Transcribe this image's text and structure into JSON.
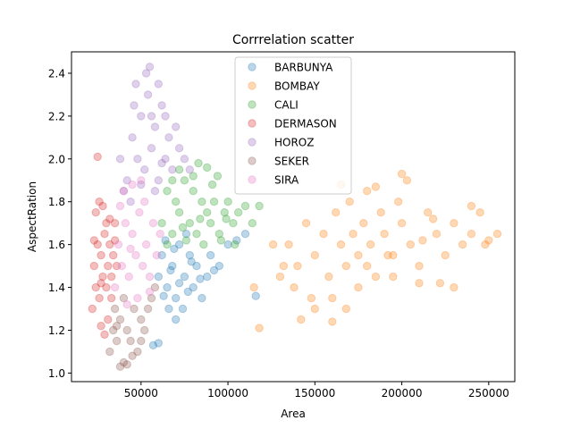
{
  "chart_data": {
    "type": "scatter",
    "title": "Corrrelation scatter",
    "xlabel": "Area",
    "ylabel": "AspectRation",
    "xlim": [
      10000,
      265000
    ],
    "ylim": [
      0.96,
      2.5
    ],
    "xticks": [
      50000,
      100000,
      150000,
      200000,
      250000
    ],
    "yticks": [
      1.0,
      1.2,
      1.4,
      1.6,
      1.8,
      2.0,
      2.2,
      2.4
    ],
    "xtick_labels": [
      "50000",
      "100000",
      "150000",
      "200000",
      "250000"
    ],
    "ytick_labels": [
      "1.0",
      "1.2",
      "1.4",
      "1.6",
      "1.8",
      "2.0",
      "2.2",
      "2.4"
    ],
    "grid": false,
    "legend": "upper center",
    "marker_alpha": 0.3,
    "series": [
      {
        "name": "BARBUNYA",
        "color": "#1f77b4",
        "points": [
          [
            60000,
            1.45
          ],
          [
            62000,
            1.55
          ],
          [
            65000,
            1.4
          ],
          [
            68000,
            1.5
          ],
          [
            70000,
            1.35
          ],
          [
            72000,
            1.6
          ],
          [
            75000,
            1.45
          ],
          [
            78000,
            1.55
          ],
          [
            80000,
            1.4
          ],
          [
            82000,
            1.5
          ],
          [
            85000,
            1.35
          ],
          [
            88000,
            1.45
          ],
          [
            66000,
            1.3
          ],
          [
            70000,
            1.25
          ],
          [
            74000,
            1.3
          ],
          [
            64000,
            1.62
          ],
          [
            76000,
            1.65
          ],
          [
            90000,
            1.55
          ],
          [
            95000,
            1.5
          ],
          [
            100000,
            1.6
          ],
          [
            105000,
            1.62
          ],
          [
            110000,
            1.65
          ],
          [
            116000,
            1.36
          ],
          [
            60000,
            1.14
          ],
          [
            57000,
            1.13
          ],
          [
            72000,
            1.42
          ],
          [
            67000,
            1.48
          ],
          [
            79000,
            1.52
          ],
          [
            84000,
            1.44
          ],
          [
            92000,
            1.48
          ],
          [
            63000,
            1.36
          ],
          [
            69000,
            1.58
          ],
          [
            77000,
            1.38
          ]
        ]
      },
      {
        "name": "BOMBAY",
        "color": "#ff7f0e",
        "points": [
          [
            115000,
            1.4
          ],
          [
            118000,
            1.21
          ],
          [
            130000,
            1.45
          ],
          [
            135000,
            1.6
          ],
          [
            140000,
            1.5
          ],
          [
            145000,
            1.7
          ],
          [
            150000,
            1.55
          ],
          [
            155000,
            1.65
          ],
          [
            158000,
            1.45
          ],
          [
            160000,
            1.35
          ],
          [
            162000,
            1.75
          ],
          [
            165000,
            1.6
          ],
          [
            168000,
            1.5
          ],
          [
            170000,
            1.8
          ],
          [
            172000,
            1.65
          ],
          [
            175000,
            1.55
          ],
          [
            178000,
            1.7
          ],
          [
            180000,
            1.85
          ],
          [
            182000,
            1.6
          ],
          [
            185000,
            1.45
          ],
          [
            188000,
            1.75
          ],
          [
            190000,
            1.65
          ],
          [
            195000,
            1.55
          ],
          [
            198000,
            1.8
          ],
          [
            200000,
            1.7
          ],
          [
            205000,
            1.6
          ],
          [
            210000,
            1.5
          ],
          [
            215000,
            1.75
          ],
          [
            220000,
            1.65
          ],
          [
            225000,
            1.55
          ],
          [
            230000,
            1.7
          ],
          [
            235000,
            1.6
          ],
          [
            240000,
            1.65
          ],
          [
            248000,
            1.6
          ],
          [
            255000,
            1.65
          ],
          [
            250000,
            1.62
          ],
          [
            245000,
            1.75
          ],
          [
            200000,
            1.93
          ],
          [
            203000,
            1.9
          ],
          [
            185000,
            1.87
          ],
          [
            165000,
            1.88
          ],
          [
            142000,
            1.25
          ],
          [
            150000,
            1.3
          ],
          [
            160000,
            1.24
          ],
          [
            175000,
            1.4
          ],
          [
            195000,
            1.45
          ],
          [
            210000,
            1.42
          ],
          [
            230000,
            1.4
          ],
          [
            222000,
            1.42
          ],
          [
            126000,
            1.6
          ],
          [
            132000,
            1.5
          ],
          [
            138000,
            1.4
          ],
          [
            148000,
            1.35
          ],
          [
            168000,
            1.3
          ],
          [
            180000,
            1.5
          ],
          [
            192000,
            1.55
          ],
          [
            212000,
            1.62
          ],
          [
            218000,
            1.72
          ],
          [
            240000,
            1.78
          ]
        ]
      },
      {
        "name": "CALI",
        "color": "#2ca02c",
        "points": [
          [
            62000,
            1.7
          ],
          [
            65000,
            1.85
          ],
          [
            68000,
            1.65
          ],
          [
            70000,
            1.8
          ],
          [
            72000,
            1.75
          ],
          [
            75000,
            1.9
          ],
          [
            78000,
            1.7
          ],
          [
            80000,
            1.85
          ],
          [
            82000,
            1.65
          ],
          [
            85000,
            1.8
          ],
          [
            88000,
            1.75
          ],
          [
            90000,
            1.7
          ],
          [
            92000,
            1.8
          ],
          [
            95000,
            1.65
          ],
          [
            98000,
            1.75
          ],
          [
            100000,
            1.8
          ],
          [
            103000,
            1.7
          ],
          [
            106000,
            1.75
          ],
          [
            110000,
            1.78
          ],
          [
            114000,
            1.7
          ],
          [
            118000,
            1.78
          ],
          [
            83000,
            1.98
          ],
          [
            88000,
            1.96
          ],
          [
            94000,
            1.92
          ],
          [
            72000,
            1.95
          ],
          [
            65000,
            1.6
          ],
          [
            76000,
            1.62
          ],
          [
            86000,
            1.6
          ],
          [
            96000,
            1.62
          ],
          [
            104000,
            1.6
          ],
          [
            68000,
            1.9
          ],
          [
            80000,
            1.92
          ],
          [
            91000,
            1.88
          ],
          [
            74000,
            1.68
          ],
          [
            84000,
            1.72
          ],
          [
            99000,
            1.72
          ]
        ]
      },
      {
        "name": "DERMASON",
        "color": "#d62728",
        "points": [
          [
            22000,
            1.3
          ],
          [
            23000,
            1.5
          ],
          [
            24000,
            1.4
          ],
          [
            25000,
            1.6
          ],
          [
            26000,
            1.35
          ],
          [
            27000,
            1.55
          ],
          [
            28000,
            1.45
          ],
          [
            29000,
            1.65
          ],
          [
            30000,
            1.4
          ],
          [
            31000,
            1.5
          ],
          [
            32000,
            1.6
          ],
          [
            33000,
            1.45
          ],
          [
            34000,
            1.55
          ],
          [
            35000,
            1.7
          ],
          [
            36000,
            1.5
          ],
          [
            24000,
            1.75
          ],
          [
            26000,
            1.8
          ],
          [
            28000,
            1.78
          ],
          [
            30000,
            1.7
          ],
          [
            25000,
            2.01
          ],
          [
            27000,
            1.22
          ],
          [
            29000,
            1.18
          ],
          [
            31000,
            1.25
          ],
          [
            23000,
            1.62
          ],
          [
            33000,
            1.35
          ],
          [
            35000,
            1.62
          ],
          [
            27000,
            1.42
          ],
          [
            32000,
            1.72
          ]
        ]
      },
      {
        "name": "HOROZ",
        "color": "#9467bd",
        "points": [
          [
            42000,
            1.9
          ],
          [
            45000,
            2.1
          ],
          [
            48000,
            2.0
          ],
          [
            50000,
            2.2
          ],
          [
            52000,
            1.95
          ],
          [
            54000,
            2.3
          ],
          [
            56000,
            2.05
          ],
          [
            58000,
            2.15
          ],
          [
            60000,
            1.9
          ],
          [
            62000,
            2.25
          ],
          [
            64000,
            2.0
          ],
          [
            66000,
            2.1
          ],
          [
            68000,
            1.95
          ],
          [
            70000,
            2.15
          ],
          [
            72000,
            2.05
          ],
          [
            55000,
            2.43
          ],
          [
            53000,
            2.4
          ],
          [
            47000,
            2.35
          ],
          [
            60000,
            2.35
          ],
          [
            75000,
            2.0
          ],
          [
            78000,
            1.95
          ],
          [
            40000,
            1.85
          ],
          [
            38000,
            2.0
          ],
          [
            44000,
            1.8
          ],
          [
            58000,
            1.85
          ],
          [
            64000,
            2.2
          ],
          [
            50000,
            1.88
          ],
          [
            46000,
            2.25
          ],
          [
            62000,
            1.98
          ],
          [
            56000,
            2.2
          ]
        ]
      },
      {
        "name": "SEKER",
        "color": "#8c564b",
        "points": [
          [
            32000,
            1.1
          ],
          [
            34000,
            1.2
          ],
          [
            36000,
            1.15
          ],
          [
            38000,
            1.25
          ],
          [
            40000,
            1.05
          ],
          [
            42000,
            1.2
          ],
          [
            44000,
            1.15
          ],
          [
            46000,
            1.3
          ],
          [
            48000,
            1.1
          ],
          [
            50000,
            1.25
          ],
          [
            52000,
            1.2
          ],
          [
            54000,
            1.3
          ],
          [
            56000,
            1.35
          ],
          [
            58000,
            1.4
          ],
          [
            38000,
            1.03
          ],
          [
            42000,
            1.04
          ],
          [
            35000,
            1.3
          ],
          [
            45000,
            1.08
          ],
          [
            50000,
            1.15
          ],
          [
            40000,
            1.35
          ],
          [
            36000,
            1.22
          ]
        ]
      },
      {
        "name": "SIRA",
        "color": "#e377c2",
        "points": [
          [
            35000,
            1.4
          ],
          [
            37000,
            1.6
          ],
          [
            39000,
            1.5
          ],
          [
            41000,
            1.7
          ],
          [
            43000,
            1.45
          ],
          [
            45000,
            1.65
          ],
          [
            47000,
            1.55
          ],
          [
            49000,
            1.75
          ],
          [
            51000,
            1.5
          ],
          [
            53000,
            1.6
          ],
          [
            55000,
            1.45
          ],
          [
            57000,
            1.7
          ],
          [
            59000,
            1.55
          ],
          [
            61000,
            1.65
          ],
          [
            40000,
            1.85
          ],
          [
            45000,
            1.88
          ],
          [
            50000,
            1.9
          ],
          [
            42000,
            1.32
          ],
          [
            48000,
            1.35
          ],
          [
            55000,
            1.38
          ],
          [
            38000,
            1.78
          ],
          [
            52000,
            1.8
          ],
          [
            44000,
            1.58
          ]
        ]
      }
    ]
  }
}
